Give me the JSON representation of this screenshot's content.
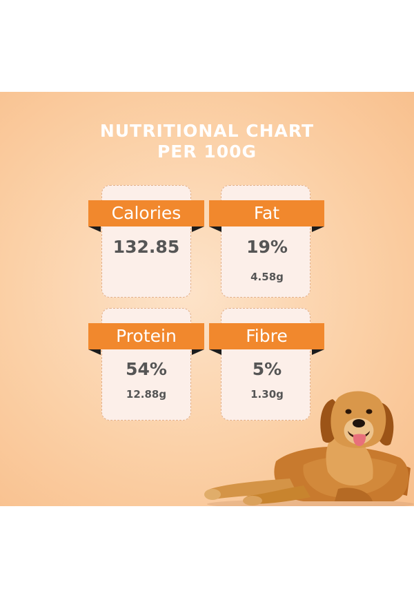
{
  "title": {
    "line1": "NUTRITIONAL CHART",
    "line2": "PER 100G"
  },
  "nutrients": [
    {
      "label": "Calories",
      "value": "132.85",
      "amount": ""
    },
    {
      "label": "Fat",
      "value": "19%",
      "amount": "4.58g"
    },
    {
      "label": "Protein",
      "value": "54%",
      "amount": "12.88g"
    },
    {
      "label": "Fibre",
      "value": "5%",
      "amount": "1.30g"
    }
  ],
  "colors": {
    "ribbon": "#f1882d",
    "card": "#fcefe9",
    "background": "#fbd0a6",
    "text": "#555555"
  },
  "image": {
    "icon": "golden-retriever-dog-illustration"
  }
}
